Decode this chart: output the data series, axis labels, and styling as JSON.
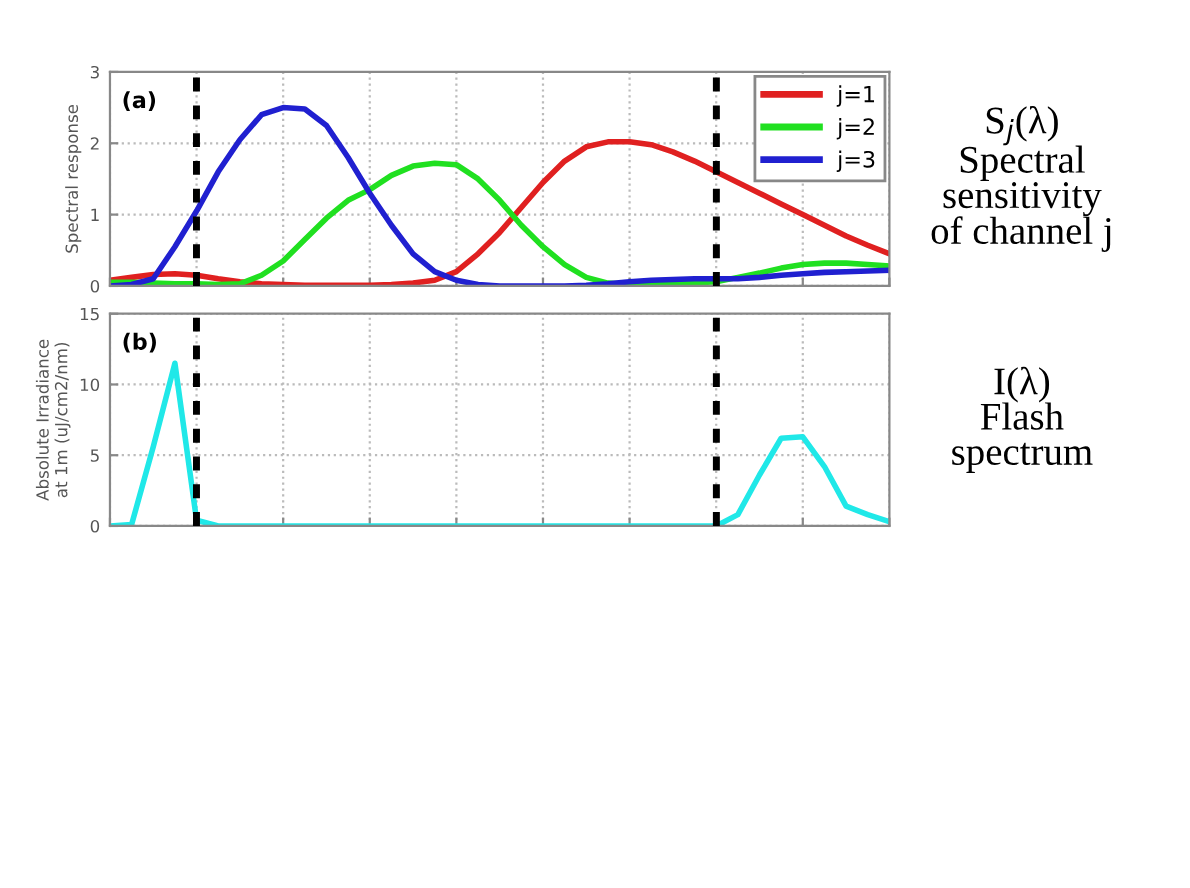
{
  "chart_data": [
    {
      "type": "line",
      "ylabel": "Spectral response",
      "categories": [
        null,
        null,
        null,
        null,
        null,
        null,
        null,
        null,
        null,
        null,
        null,
        null,
        null,
        null,
        null,
        null,
        null,
        null,
        null,
        null,
        null,
        null,
        null,
        null,
        null,
        null,
        null,
        null,
        null,
        null,
        null,
        null,
        null,
        null,
        null,
        null,
        null
      ],
      "series": [
        {
          "name": "j=1",
          "color": "#e02020",
          "values": [
            0.08,
            0.12,
            0.16,
            0.17,
            0.15,
            0.1,
            0.06,
            0.03,
            0.02,
            0.01,
            0.01,
            0.01,
            0.01,
            0.02,
            0.04,
            0.08,
            0.2,
            0.45,
            0.75,
            1.1,
            1.45,
            1.75,
            1.95,
            2.02,
            2.02,
            1.98,
            1.88,
            1.75,
            1.6,
            1.45,
            1.3,
            1.15,
            1.0,
            0.85,
            0.7,
            0.57,
            0.45
          ]
        },
        {
          "name": "j=2",
          "color": "#20e020",
          "values": [
            0.05,
            0.05,
            0.04,
            0.03,
            0.03,
            0.02,
            0.03,
            0.15,
            0.35,
            0.65,
            0.95,
            1.2,
            1.35,
            1.55,
            1.68,
            1.72,
            1.7,
            1.5,
            1.2,
            0.85,
            0.55,
            0.3,
            0.12,
            0.04,
            0.02,
            0.02,
            0.03,
            0.04,
            0.06,
            0.12,
            0.18,
            0.25,
            0.3,
            0.32,
            0.32,
            0.3,
            0.28
          ]
        },
        {
          "name": "j=3",
          "color": "#2020d0",
          "values": [
            0,
            0.02,
            0.1,
            0.55,
            1.05,
            1.6,
            2.05,
            2.4,
            2.5,
            2.48,
            2.25,
            1.8,
            1.3,
            0.85,
            0.45,
            0.2,
            0.08,
            0.02,
            0,
            0,
            0,
            0,
            0.01,
            0.03,
            0.06,
            0.08,
            0.09,
            0.1,
            0.1,
            0.1,
            0.12,
            0.15,
            0.17,
            0.19,
            0.2,
            0.21,
            0.22
          ]
        }
      ],
      "ylim": [
        0,
        3
      ],
      "yticks": [
        0,
        1,
        2,
        3
      ],
      "grid": true,
      "legend": "top right",
      "tick_labels": "y",
      "line_style": "solid",
      "marker": "none",
      "annotations": [
        "(a)",
        "S$_{j}$(λ)\nSpectral\nsensitivity\nof channel j"
      ]
    },
    {
      "type": "line",
      "ylabel": "Absolute Irradiance\nat 1m (uJ/cm2/nm)",
      "categories": [
        null,
        null,
        null,
        null,
        null,
        null,
        null,
        null,
        null,
        null,
        null,
        null,
        null,
        null,
        null,
        null,
        null,
        null,
        null,
        null,
        null,
        null,
        null,
        null,
        null,
        null,
        null,
        null,
        null,
        null,
        null,
        null,
        null,
        null,
        null,
        null,
        null
      ],
      "series": [
        {
          "color": "#20e8e8",
          "values": [
            0,
            0.1,
            5.6,
            11.5,
            0.4,
            0,
            0,
            0,
            0,
            0,
            0,
            0,
            0,
            0,
            0,
            0,
            0,
            0,
            0,
            0,
            0,
            0,
            0,
            0,
            0,
            0,
            0,
            0,
            0,
            0.8,
            3.6,
            6.2,
            6.3,
            4.2,
            1.4,
            0.8,
            0.3
          ]
        }
      ],
      "ylim": [
        0,
        15
      ],
      "yticks": [
        0,
        5,
        10,
        15
      ],
      "grid": true,
      "tick_labels": "y",
      "line_style": "solid",
      "marker": "none",
      "annotations": [
        "(b)",
        "I(λ)\nFlash\nspectrum"
      ]
    }
  ]
}
